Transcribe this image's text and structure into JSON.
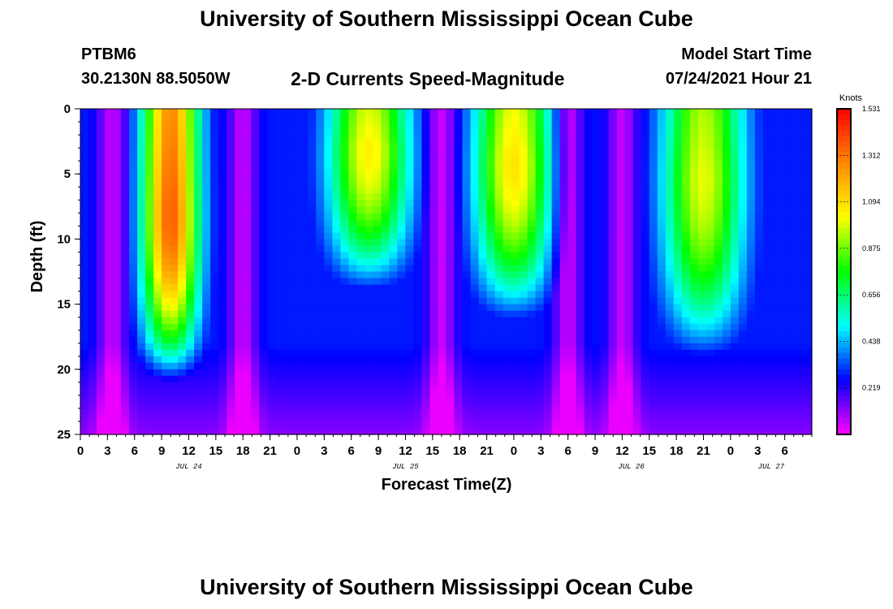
{
  "header": {
    "title": "University of Southern Mississippi Ocean Cube",
    "station_id": "PTBM6",
    "station_coords": "30.2130N  88.5050W",
    "subtitle": "2-D Currents Speed-Magnitude",
    "model_start_label": "Model Start Time",
    "model_start_value": "07/24/2021 Hour 21"
  },
  "footer": {
    "title": "University of Southern Mississippi Ocean Cube"
  },
  "chart_data": {
    "type": "heatmap",
    "title": "2-D Currents Speed-Magnitude",
    "xlabel": "Forecast Time(Z)",
    "ylabel": "Depth (ft)",
    "x_range_hours": [
      0,
      81
    ],
    "x_ticks": [
      "0",
      "3",
      "6",
      "9",
      "12",
      "15",
      "18",
      "21",
      "0",
      "3",
      "6",
      "9",
      "12",
      "15",
      "18",
      "21",
      "0",
      "3",
      "6",
      "9",
      "12",
      "15",
      "18",
      "21",
      "0",
      "3",
      "6"
    ],
    "date_labels": [
      {
        "hour": 12,
        "label": "JUL 24"
      },
      {
        "hour": 36,
        "label": "JUL 25"
      },
      {
        "hour": 61,
        "label": "JUL 26"
      },
      {
        "hour": 76.5,
        "label": "JUL 27"
      }
    ],
    "y_range": [
      0,
      25
    ],
    "y_ticks": [
      0,
      5,
      10,
      15,
      20,
      25
    ],
    "y_inverted": true,
    "colorbar": {
      "unit": "Knots",
      "min": 0,
      "max": 1.531,
      "tick_values": [
        1.531,
        1.312,
        1.094,
        0.875,
        0.656,
        0.438,
        0.219
      ],
      "colors": [
        "#ff00ff",
        "#0000ff",
        "#00ffff",
        "#00ff00",
        "#ffff00",
        "#ff8800",
        "#ff0000"
      ]
    },
    "speed_events": [
      {
        "center_hour": 10,
        "peak_depth": 8,
        "peak": 1.36,
        "depth_scale": 10,
        "width_hours": 3.2
      },
      {
        "center_hour": 32,
        "peak_depth": 3,
        "peak": 1.05,
        "depth_scale": 8.5,
        "width_hours": 4.6
      },
      {
        "center_hour": 48,
        "peak_depth": 4,
        "peak": 1.08,
        "depth_scale": 9.5,
        "width_hours": 4.4
      },
      {
        "center_hour": 69,
        "peak_depth": 5,
        "peak": 1.0,
        "depth_scale": 11,
        "width_hours": 4.6
      }
    ],
    "slack_times_hours": [
      3.5,
      18,
      40,
      54,
      60
    ]
  }
}
